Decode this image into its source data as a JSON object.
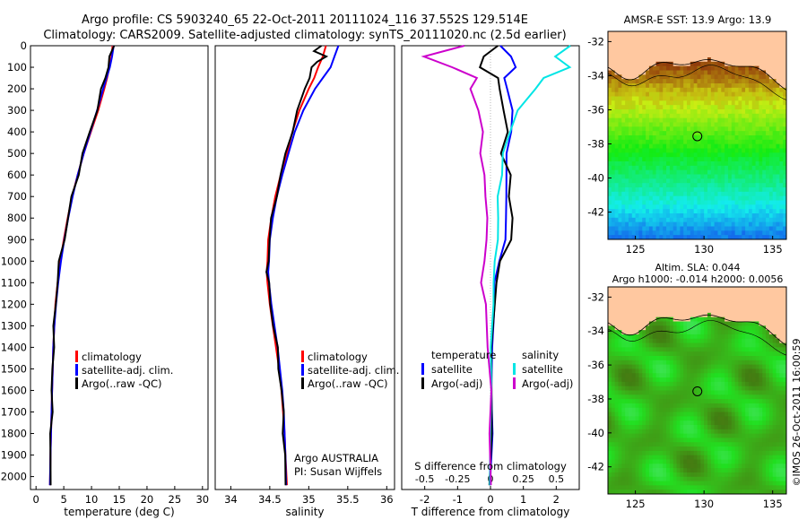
{
  "header": {
    "title_line1": "Argo profile: CS 5903240_65 22-Oct-2011 20111024_116 37.552S 129.514E",
    "title_line2": "Climatology: CARS2009. Satellite-adjusted climatology: synTS_20111020.nc (2.5d earlier)"
  },
  "colors": {
    "climatology": "#ff0000",
    "satellite": "#0000ff",
    "argo": "#000000",
    "salinity_satellite": "#00e5e5",
    "salinity_argo": "#cc00cc",
    "land": "#ffc8a0"
  },
  "chart_data": [
    {
      "id": "temperature",
      "type": "line",
      "xlabel": "temperature (deg C)",
      "ylabel": "",
      "xlim": [
        -1,
        31
      ],
      "ylim": [
        2060,
        0
      ],
      "xticks": [
        0,
        5,
        10,
        15,
        20,
        25,
        30
      ],
      "xtick_labels": [
        "0",
        "5",
        "10",
        "15",
        "20",
        "25",
        "30"
      ],
      "yticks": [
        0,
        100,
        200,
        300,
        400,
        500,
        600,
        700,
        800,
        900,
        1000,
        1100,
        1200,
        1300,
        1400,
        1500,
        1600,
        1700,
        1800,
        1900,
        2000
      ],
      "ytick_labels": [
        "0",
        "100",
        "200",
        "300",
        "400",
        "500",
        "600",
        "700",
        "800",
        "900",
        "1000",
        "1100",
        "1200",
        "1300",
        "1400",
        "1500",
        "1600",
        "1700",
        "1800",
        "1900",
        "2000"
      ],
      "legend": [
        "climatology",
        "satellite-adj. clim.",
        "Argo(..raw -QC)"
      ],
      "series": [
        {
          "name": "climatology",
          "color": "#ff0000",
          "depth": [
            0,
            50,
            100,
            150,
            200,
            300,
            400,
            500,
            600,
            700,
            800,
            900,
            1000,
            1100,
            1200,
            1300,
            1400,
            1500,
            1600,
            1700,
            1800,
            1900,
            2040
          ],
          "values": [
            13.8,
            13.6,
            13.2,
            12.8,
            12.3,
            11.2,
            9.9,
            8.6,
            7.5,
            6.5,
            5.7,
            5.0,
            4.4,
            3.9,
            3.5,
            3.3,
            3.1,
            3.0,
            2.9,
            2.8,
            2.7,
            2.6,
            2.5
          ]
        },
        {
          "name": "satellite-adj. clim.",
          "color": "#0000ff",
          "depth": [
            0,
            50,
            100,
            150,
            200,
            300,
            400,
            500,
            600,
            700,
            800,
            900,
            1000,
            1100,
            1200,
            1300,
            1400,
            1500,
            1600,
            1700,
            1800,
            1900,
            2040
          ],
          "values": [
            14.0,
            13.7,
            13.3,
            12.7,
            12.1,
            11.0,
            9.8,
            8.6,
            7.5,
            6.6,
            5.8,
            5.1,
            4.5,
            4.0,
            3.6,
            3.3,
            3.1,
            3.0,
            2.9,
            2.8,
            2.7,
            2.6,
            2.5
          ]
        },
        {
          "name": "Argo(..raw -QC)",
          "color": "#000000",
          "depth": [
            0,
            50,
            100,
            150,
            200,
            300,
            400,
            500,
            600,
            700,
            800,
            900,
            1000,
            1100,
            1200,
            1300,
            1400,
            1500,
            1600,
            1700,
            1800,
            1900,
            2040
          ],
          "values": [
            13.9,
            13.4,
            13.0,
            12.4,
            11.9,
            10.9,
            9.7,
            8.5,
            7.5,
            6.5,
            5.8,
            5.0,
            4.3,
            3.8,
            3.5,
            3.3,
            3.1,
            3.0,
            2.9,
            2.8,
            2.7,
            2.6,
            2.5
          ]
        }
      ]
    },
    {
      "id": "salinity",
      "type": "line",
      "xlabel": "salinity",
      "xlim": [
        33.8,
        36.1
      ],
      "ylim": [
        2060,
        0
      ],
      "xticks": [
        34,
        34.5,
        35,
        35.5,
        36
      ],
      "xtick_labels": [
        "34",
        "34.5",
        "35",
        "35.5",
        "36"
      ],
      "legend": [
        "climatology",
        "satellite-adj. clim.",
        "Argo(..raw -QC)"
      ],
      "annotation": [
        "Argo AUSTRALIA",
        "PI: Susan Wijffels"
      ],
      "series": [
        {
          "name": "climatology",
          "color": "#ff0000",
          "depth": [
            0,
            50,
            100,
            150,
            200,
            300,
            400,
            500,
            600,
            700,
            800,
            900,
            1000,
            1050,
            1100,
            1200,
            1300,
            1400,
            1500,
            1600,
            1700,
            1800,
            1900,
            2040
          ],
          "values": [
            35.22,
            35.18,
            35.12,
            35.07,
            35.0,
            34.88,
            34.79,
            34.72,
            34.64,
            34.57,
            34.52,
            34.48,
            34.47,
            34.46,
            34.47,
            34.5,
            34.54,
            34.58,
            34.62,
            34.65,
            34.67,
            34.69,
            34.7,
            34.72
          ]
        },
        {
          "name": "satellite-adj. clim.",
          "color": "#0000ff",
          "depth": [
            0,
            50,
            100,
            150,
            200,
            300,
            400,
            500,
            600,
            700,
            800,
            900,
            1000,
            1050,
            1100,
            1200,
            1300,
            1400,
            1500,
            1600,
            1700,
            1800,
            1900,
            2040
          ],
          "values": [
            35.38,
            35.33,
            35.28,
            35.18,
            35.08,
            34.93,
            34.82,
            34.74,
            34.66,
            34.59,
            34.54,
            34.5,
            34.49,
            34.48,
            34.49,
            34.52,
            34.56,
            34.6,
            34.63,
            34.66,
            34.68,
            34.69,
            34.7,
            34.71
          ]
        },
        {
          "name": "Argo(..raw -QC)",
          "color": "#000000",
          "depth": [
            0,
            25,
            50,
            75,
            100,
            150,
            200,
            300,
            400,
            500,
            600,
            700,
            800,
            900,
            1000,
            1050,
            1100,
            1200,
            1300,
            1400,
            1500,
            1600,
            1700,
            1800,
            1900,
            2040
          ],
          "values": [
            35.15,
            35.08,
            35.22,
            35.1,
            35.05,
            35.0,
            34.95,
            34.86,
            34.78,
            34.71,
            34.64,
            34.58,
            34.53,
            34.49,
            34.48,
            34.47,
            34.48,
            34.51,
            34.55,
            34.59,
            34.62,
            34.65,
            34.67,
            34.68,
            34.69,
            34.7
          ]
        }
      ]
    },
    {
      "id": "difference",
      "type": "line",
      "xlabel": "T difference from climatology",
      "xlabel_top": "S difference from climatology",
      "xlim": [
        -2.7,
        2.7
      ],
      "ylim": [
        2060,
        0
      ],
      "xticks": [
        -2,
        -1,
        0,
        1,
        2
      ],
      "xtick_labels": [
        "-2",
        "-1",
        "0",
        "1",
        "2"
      ],
      "top_ticks": [
        -0.5,
        -0.25,
        0,
        0.25,
        0.5
      ],
      "top_tick_labels": [
        "-0.5",
        "-0.25",
        "0",
        "0.25",
        "0.5"
      ],
      "legend_temperature": {
        "title": "temperature",
        "items": [
          "satellite",
          "Argo(-adj)"
        ]
      },
      "legend_salinity": {
        "title": "salinity",
        "items": [
          "satellite",
          "Argo(-adj)"
        ]
      },
      "series": [
        {
          "name": "T satellite",
          "color": "#0000ff",
          "depth": [
            0,
            50,
            100,
            150,
            200,
            300,
            400,
            500,
            600,
            700,
            800,
            900,
            1000,
            1100,
            1200,
            1400,
            1600,
            1800,
            2040
          ],
          "values": [
            0.3,
            0.6,
            0.8,
            0.4,
            0.5,
            0.7,
            0.6,
            0.5,
            0.5,
            0.45,
            0.5,
            0.45,
            0.25,
            0.15,
            0.1,
            0.05,
            0.05,
            0.03,
            0.0
          ]
        },
        {
          "name": "T Argo(-adj)",
          "color": "#000000",
          "depth": [
            0,
            50,
            100,
            150,
            200,
            300,
            400,
            500,
            600,
            700,
            800,
            900,
            1000,
            1100,
            1200,
            1400,
            1600,
            1800,
            2040
          ],
          "values": [
            0.2,
            -0.2,
            -0.3,
            0.2,
            0.3,
            0.4,
            0.5,
            0.35,
            0.6,
            0.55,
            0.7,
            0.6,
            0.3,
            0.2,
            0.1,
            0.05,
            0.03,
            0.02,
            0.0
          ]
        },
        {
          "name": "S satellite",
          "color": "#00e5e5",
          "depth": [
            0,
            50,
            100,
            150,
            200,
            300,
            400,
            500,
            600,
            700,
            800,
            900,
            1000,
            1100,
            1200,
            1400,
            1600,
            1800,
            2040
          ],
          "values": [
            0.6,
            0.5,
            0.6,
            0.4,
            0.35,
            0.2,
            0.15,
            0.1,
            0.08,
            0.06,
            0.06,
            0.05,
            0.04,
            0.02,
            0.02,
            0.01,
            0.0,
            0.0,
            0.0
          ]
        },
        {
          "name": "S Argo(-adj)",
          "color": "#cc00cc",
          "depth": [
            0,
            50,
            100,
            150,
            200,
            300,
            400,
            500,
            600,
            700,
            800,
            900,
            1000,
            1100,
            1200,
            1400,
            1600,
            1800,
            2040
          ],
          "values": [
            -0.2,
            -0.5,
            -0.3,
            -0.1,
            -0.15,
            -0.1,
            -0.05,
            -0.08,
            -0.05,
            -0.03,
            -0.03,
            -0.03,
            -0.04,
            -0.08,
            -0.03,
            -0.02,
            0.0,
            0.0,
            0.0
          ]
        }
      ]
    },
    {
      "id": "sst_map",
      "type": "heatmap",
      "title": "AMSR-E SST: 13.9 Argo: 13.9",
      "xlim": [
        123,
        136
      ],
      "ylim": [
        -43.6,
        -31.4
      ],
      "xticks": [
        125,
        130,
        135
      ],
      "xtick_labels": [
        "125",
        "130",
        "135"
      ],
      "yticks": [
        -32,
        -34,
        -36,
        -38,
        -40,
        -42
      ],
      "ytick_labels": [
        "-32",
        "-34",
        "-36",
        "-38",
        "-40",
        "-42"
      ],
      "marker": {
        "lon": 129.514,
        "lat": -37.552
      }
    },
    {
      "id": "sla_map",
      "type": "heatmap",
      "title_line1": "Altim. SLA: 0.044",
      "title_line2": "Argo h1000: -0.014 h2000: 0.0056",
      "xlim": [
        123,
        136
      ],
      "ylim": [
        -43.6,
        -31.4
      ],
      "xticks": [
        125,
        130,
        135
      ],
      "xtick_labels": [
        "125",
        "130",
        "135"
      ],
      "yticks": [
        -32,
        -34,
        -36,
        -38,
        -40,
        -42
      ],
      "ytick_labels": [
        "-32",
        "-34",
        "-36",
        "-38",
        "-40",
        "-42"
      ],
      "marker": {
        "lon": 129.514,
        "lat": -37.552
      }
    }
  ],
  "credit": "©IMOS 26-Oct-2011 16:00:59"
}
